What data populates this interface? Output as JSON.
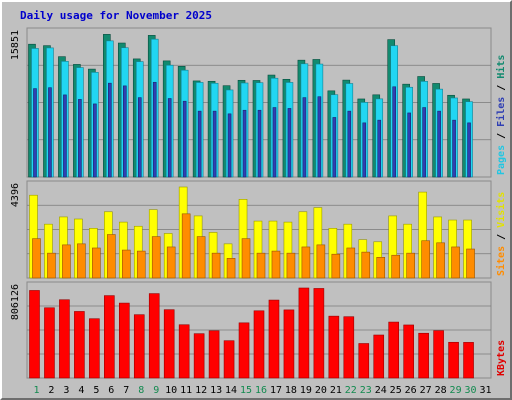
{
  "chart_data": {
    "type": "bar",
    "title": "Daily usage for November 2025",
    "categories": [
      "1",
      "2",
      "3",
      "4",
      "5",
      "6",
      "7",
      "8",
      "9",
      "10",
      "11",
      "12",
      "13",
      "14",
      "15",
      "16",
      "17",
      "18",
      "19",
      "20",
      "21",
      "22",
      "23",
      "24",
      "25",
      "26",
      "27",
      "28",
      "29",
      "30",
      "31"
    ],
    "weekend_categories": [
      "1",
      "8",
      "9",
      "15",
      "16",
      "22",
      "23",
      "29",
      "30"
    ],
    "panels": [
      {
        "id": "hits-files-pages",
        "ymax_label": "15851",
        "ymax": 15851,
        "ylabels": [
          "Pages",
          "Files",
          "Hits"
        ],
        "series": [
          {
            "name": "Hits",
            "color": "#128a6f",
            "values": [
              14720,
              14560,
              13340,
              12480,
              11960,
              15810,
              14850,
              13090,
              15700,
              12870,
              12270,
              10650,
              10610,
              10120,
              10720,
              10700,
              11300,
              10830,
              12950,
              13030,
              9550,
              10740,
              8650,
              9110,
              15230,
              10290,
              11140,
              10370,
              9060,
              8650,
              0
            ]
          },
          {
            "name": "Files",
            "color": "#22d6f2",
            "values": [
              14250,
              14310,
              12820,
              12130,
              11600,
              15090,
              14330,
              12790,
              15280,
              12390,
              11840,
              10480,
              10390,
              9650,
              10420,
              10450,
              10950,
              10480,
              12550,
              12520,
              9120,
              10360,
              8270,
              8660,
              14550,
              9950,
              10600,
              9740,
              8760,
              8350,
              0
            ]
          },
          {
            "name": "Pages",
            "color": "#2f3fb3",
            "values": [
              9800,
              9900,
              9100,
              8600,
              8100,
              10400,
              10100,
              8800,
              10500,
              8700,
              8400,
              7300,
              7300,
              7000,
              7400,
              7400,
              7700,
              7600,
              8800,
              8900,
              6600,
              7300,
              6000,
              6300,
              10000,
              7100,
              7700,
              7300,
              6300,
              6000,
              0
            ]
          }
        ]
      },
      {
        "id": "visits-sites",
        "ymax_label": "4396",
        "ymax": 4396,
        "ylabels": [
          "Sites",
          "Visits"
        ],
        "series": [
          {
            "name": "Visits",
            "color": "#ffff00",
            "values": [
              4000,
              2600,
              2950,
              2850,
              2400,
              3200,
              2700,
              2500,
              3300,
              2150,
              4396,
              3000,
              2200,
              1650,
              3800,
              2750,
              2750,
              2700,
              3200,
              3400,
              2400,
              2600,
              1850,
              1750,
              3000,
              2600,
              4150,
              2950,
              2800,
              2800,
              0
            ]
          },
          {
            "name": "Sites",
            "color": "#ff8c00",
            "values": [
              1900,
              1200,
              1600,
              1650,
              1450,
              2100,
              1350,
              1300,
              2000,
              1500,
              3100,
              2000,
              1200,
              950,
              1900,
              1200,
              1300,
              1200,
              1500,
              1600,
              1150,
              1450,
              1250,
              1000,
              1100,
              1200,
              1800,
              1700,
              1500,
              1400,
              0
            ]
          }
        ]
      },
      {
        "id": "kbytes",
        "ymax_label": "806126",
        "ymax": 806126,
        "ylabels": [
          "KBytes"
        ],
        "series": [
          {
            "name": "KBytes",
            "color": "#ff0000",
            "values": [
              784000,
              629000,
              701000,
              596000,
              531000,
              738000,
              671000,
              567000,
              756000,
              612000,
              477000,
              397000,
              423000,
              334000,
              494000,
              602000,
              698000,
              610000,
              806126,
              802000,
              554000,
              549000,
              309000,
              385000,
              501000,
              475000,
              401000,
              424000,
              320000,
              319000,
              0
            ]
          }
        ]
      }
    ]
  }
}
